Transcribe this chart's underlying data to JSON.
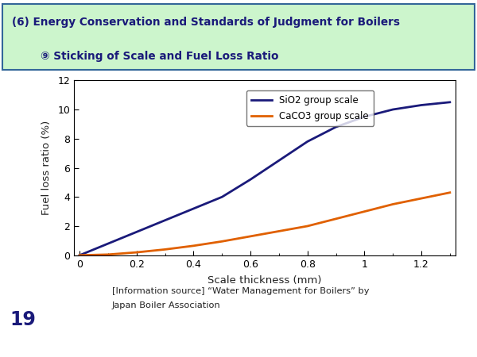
{
  "title_line1": "(6) Energy Conservation and Standards of Judgment for Boilers",
  "title_line2": "⑨ Sticking of Scale and Fuel Loss Ratio",
  "xlabel": "Scale thickness (mm)",
  "ylabel": "Fuel loss ratio (%)",
  "xlim": [
    0,
    1.3
  ],
  "ylim": [
    0,
    12
  ],
  "xticks": [
    0,
    0.2,
    0.4,
    0.6,
    0.8,
    1.0,
    1.2
  ],
  "xtick_labels": [
    "0",
    "0.2",
    "0.4",
    "0.6",
    "0.8",
    "1",
    "1.2"
  ],
  "yticks": [
    0,
    2,
    4,
    6,
    8,
    10,
    12
  ],
  "sio2_label": "SiO2 group scale",
  "caco3_label": "CaCO3 group scale",
  "sio2_color": "#1a1a7a",
  "caco3_color": "#e06000",
  "sio2_x": [
    0,
    0.1,
    0.2,
    0.3,
    0.4,
    0.5,
    0.6,
    0.7,
    0.8,
    0.9,
    1.0,
    1.1,
    1.2,
    1.3
  ],
  "sio2_y": [
    0,
    0.8,
    1.6,
    2.4,
    3.2,
    4.0,
    5.2,
    6.5,
    7.8,
    8.8,
    9.5,
    10.0,
    10.3,
    10.5
  ],
  "caco3_x": [
    0,
    0.1,
    0.2,
    0.3,
    0.4,
    0.5,
    0.6,
    0.7,
    0.8,
    0.9,
    1.0,
    1.1,
    1.2,
    1.3
  ],
  "caco3_y": [
    0,
    0.05,
    0.2,
    0.4,
    0.65,
    0.95,
    1.3,
    1.65,
    2.0,
    2.5,
    3.0,
    3.5,
    3.9,
    4.3
  ],
  "header_bg": "#ccf5cc",
  "header_border": "#336699",
  "source_text_line1": "[Information source] “Water Management for Boilers” by",
  "source_text_line2": "Japan Boiler Association",
  "page_number": "19",
  "background_color": "#ffffff",
  "text_color": "#1a1a7a"
}
